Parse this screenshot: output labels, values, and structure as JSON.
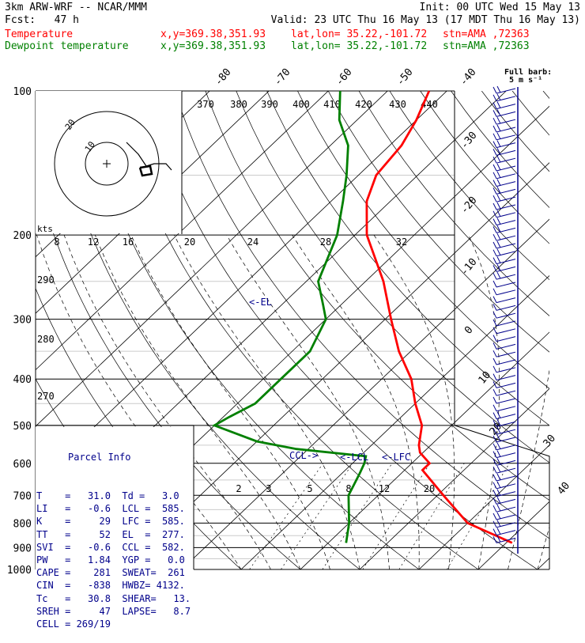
{
  "header": {
    "model": "3km ARW-WRF -- NCAR/MMM",
    "init": "Init: 00 UTC Wed 15 May 13",
    "fcst": "Fcst:   47 h",
    "valid": "Valid: 23 UTC Thu 16 May 13 (17 MDT Thu 16 May 13)"
  },
  "legend": [
    {
      "name": "Temperature",
      "color": "#ff0000",
      "xy": "x,y=369.38,351.93",
      "latlon": "lat,lon= 35.22,-101.72",
      "stn": "stn=AMA ,72363"
    },
    {
      "name": "Dewpoint temperature",
      "color": "#008000",
      "xy": "x,y=369.38,351.93",
      "latlon": "lat,lon= 35.22,-101.72",
      "stn": "stn=AMA ,72363"
    }
  ],
  "barb_note": {
    "line1": "Full barb:",
    "line2": "5 m s⁻¹"
  },
  "parcel_info": {
    "title": "Parcel Info",
    "rows": [
      "T    =   31.0  Td =   3.0",
      "LI   =   -0.6  LCL =  585.",
      "K    =     29  LFC =  585.",
      "TT   =     52  EL  =  277.",
      "SVI  =   -0.6  CCL =  582.",
      "PW   =   1.84  YGP =   0.0",
      "CAPE =    281  SWEAT=  261",
      "CIN  =   -838  HWBZ= 4132.",
      "Tc   =   30.8  SHEAR=   13.",
      "SREH =     47  LAPSE=   8.7",
      "CELL = 269/19"
    ]
  },
  "chart_data": {
    "type": "line",
    "title": "",
    "pressure_axis_labels": [
      "100",
      "200",
      "300",
      "400",
      "500",
      "600",
      "700",
      "800",
      "900",
      "1000"
    ],
    "pressure_ticks": [
      100,
      200,
      300,
      400,
      500,
      600,
      700,
      800,
      900,
      1000
    ],
    "isotherm_labels": [
      "-80",
      "-70",
      "-60",
      "-50",
      "-40",
      "-30",
      "-20",
      "-10",
      "0",
      "10",
      "20",
      "30",
      "40"
    ],
    "isotherm_values": [
      -80,
      -70,
      -60,
      -50,
      -40,
      -30,
      -20,
      -10,
      0,
      10,
      20,
      30,
      40
    ],
    "theta_labels": [
      "370",
      "380",
      "390",
      "400",
      "410",
      "420",
      "430",
      "440"
    ],
    "hodo_speed_labels": [
      "8",
      "12",
      "16",
      "20",
      "24",
      "28",
      "32"
    ],
    "hodo_unit": "kts",
    "hodo_ring_labels": [
      "20",
      "10"
    ],
    "hodo_dir_labels": [
      "290",
      "280",
      "270"
    ],
    "mixing_ratio_labels": [
      "2",
      "3",
      "5",
      "8",
      "12",
      "20"
    ],
    "level_labels": {
      "el": "<-EL",
      "ccl": "CCL->",
      "lcl": "<-LCL",
      "lfc": "<-LFC"
    },
    "series": [
      {
        "name": "Temperature",
        "color": "#ff0000",
        "points": [
          [
            880,
            31
          ],
          [
            800,
            20
          ],
          [
            700,
            11
          ],
          [
            620,
            3
          ],
          [
            600,
            3
          ],
          [
            570,
            -0.5
          ],
          [
            550,
            -2
          ],
          [
            500,
            -5
          ],
          [
            450,
            -10
          ],
          [
            400,
            -15
          ],
          [
            350,
            -22
          ],
          [
            300,
            -29
          ],
          [
            250,
            -37
          ],
          [
            200,
            -48
          ],
          [
            170,
            -54
          ],
          [
            150,
            -57
          ],
          [
            130,
            -58
          ],
          [
            115,
            -60
          ],
          [
            100,
            -63
          ]
        ]
      },
      {
        "name": "Dewpoint temperature",
        "color": "#008000",
        "points": [
          [
            880,
            3
          ],
          [
            800,
            0
          ],
          [
            700,
            -5
          ],
          [
            630,
            -7
          ],
          [
            600,
            -8
          ],
          [
            580,
            -9
          ],
          [
            560,
            -22
          ],
          [
            540,
            -30
          ],
          [
            500,
            -40
          ],
          [
            480,
            -39
          ],
          [
            450,
            -37
          ],
          [
            400,
            -37
          ],
          [
            350,
            -37
          ],
          [
            300,
            -40
          ],
          [
            280,
            -43
          ],
          [
            250,
            -48
          ],
          [
            200,
            -53
          ],
          [
            170,
            -58
          ],
          [
            150,
            -62
          ],
          [
            130,
            -67
          ],
          [
            115,
            -73
          ],
          [
            100,
            -78
          ]
        ]
      }
    ]
  }
}
